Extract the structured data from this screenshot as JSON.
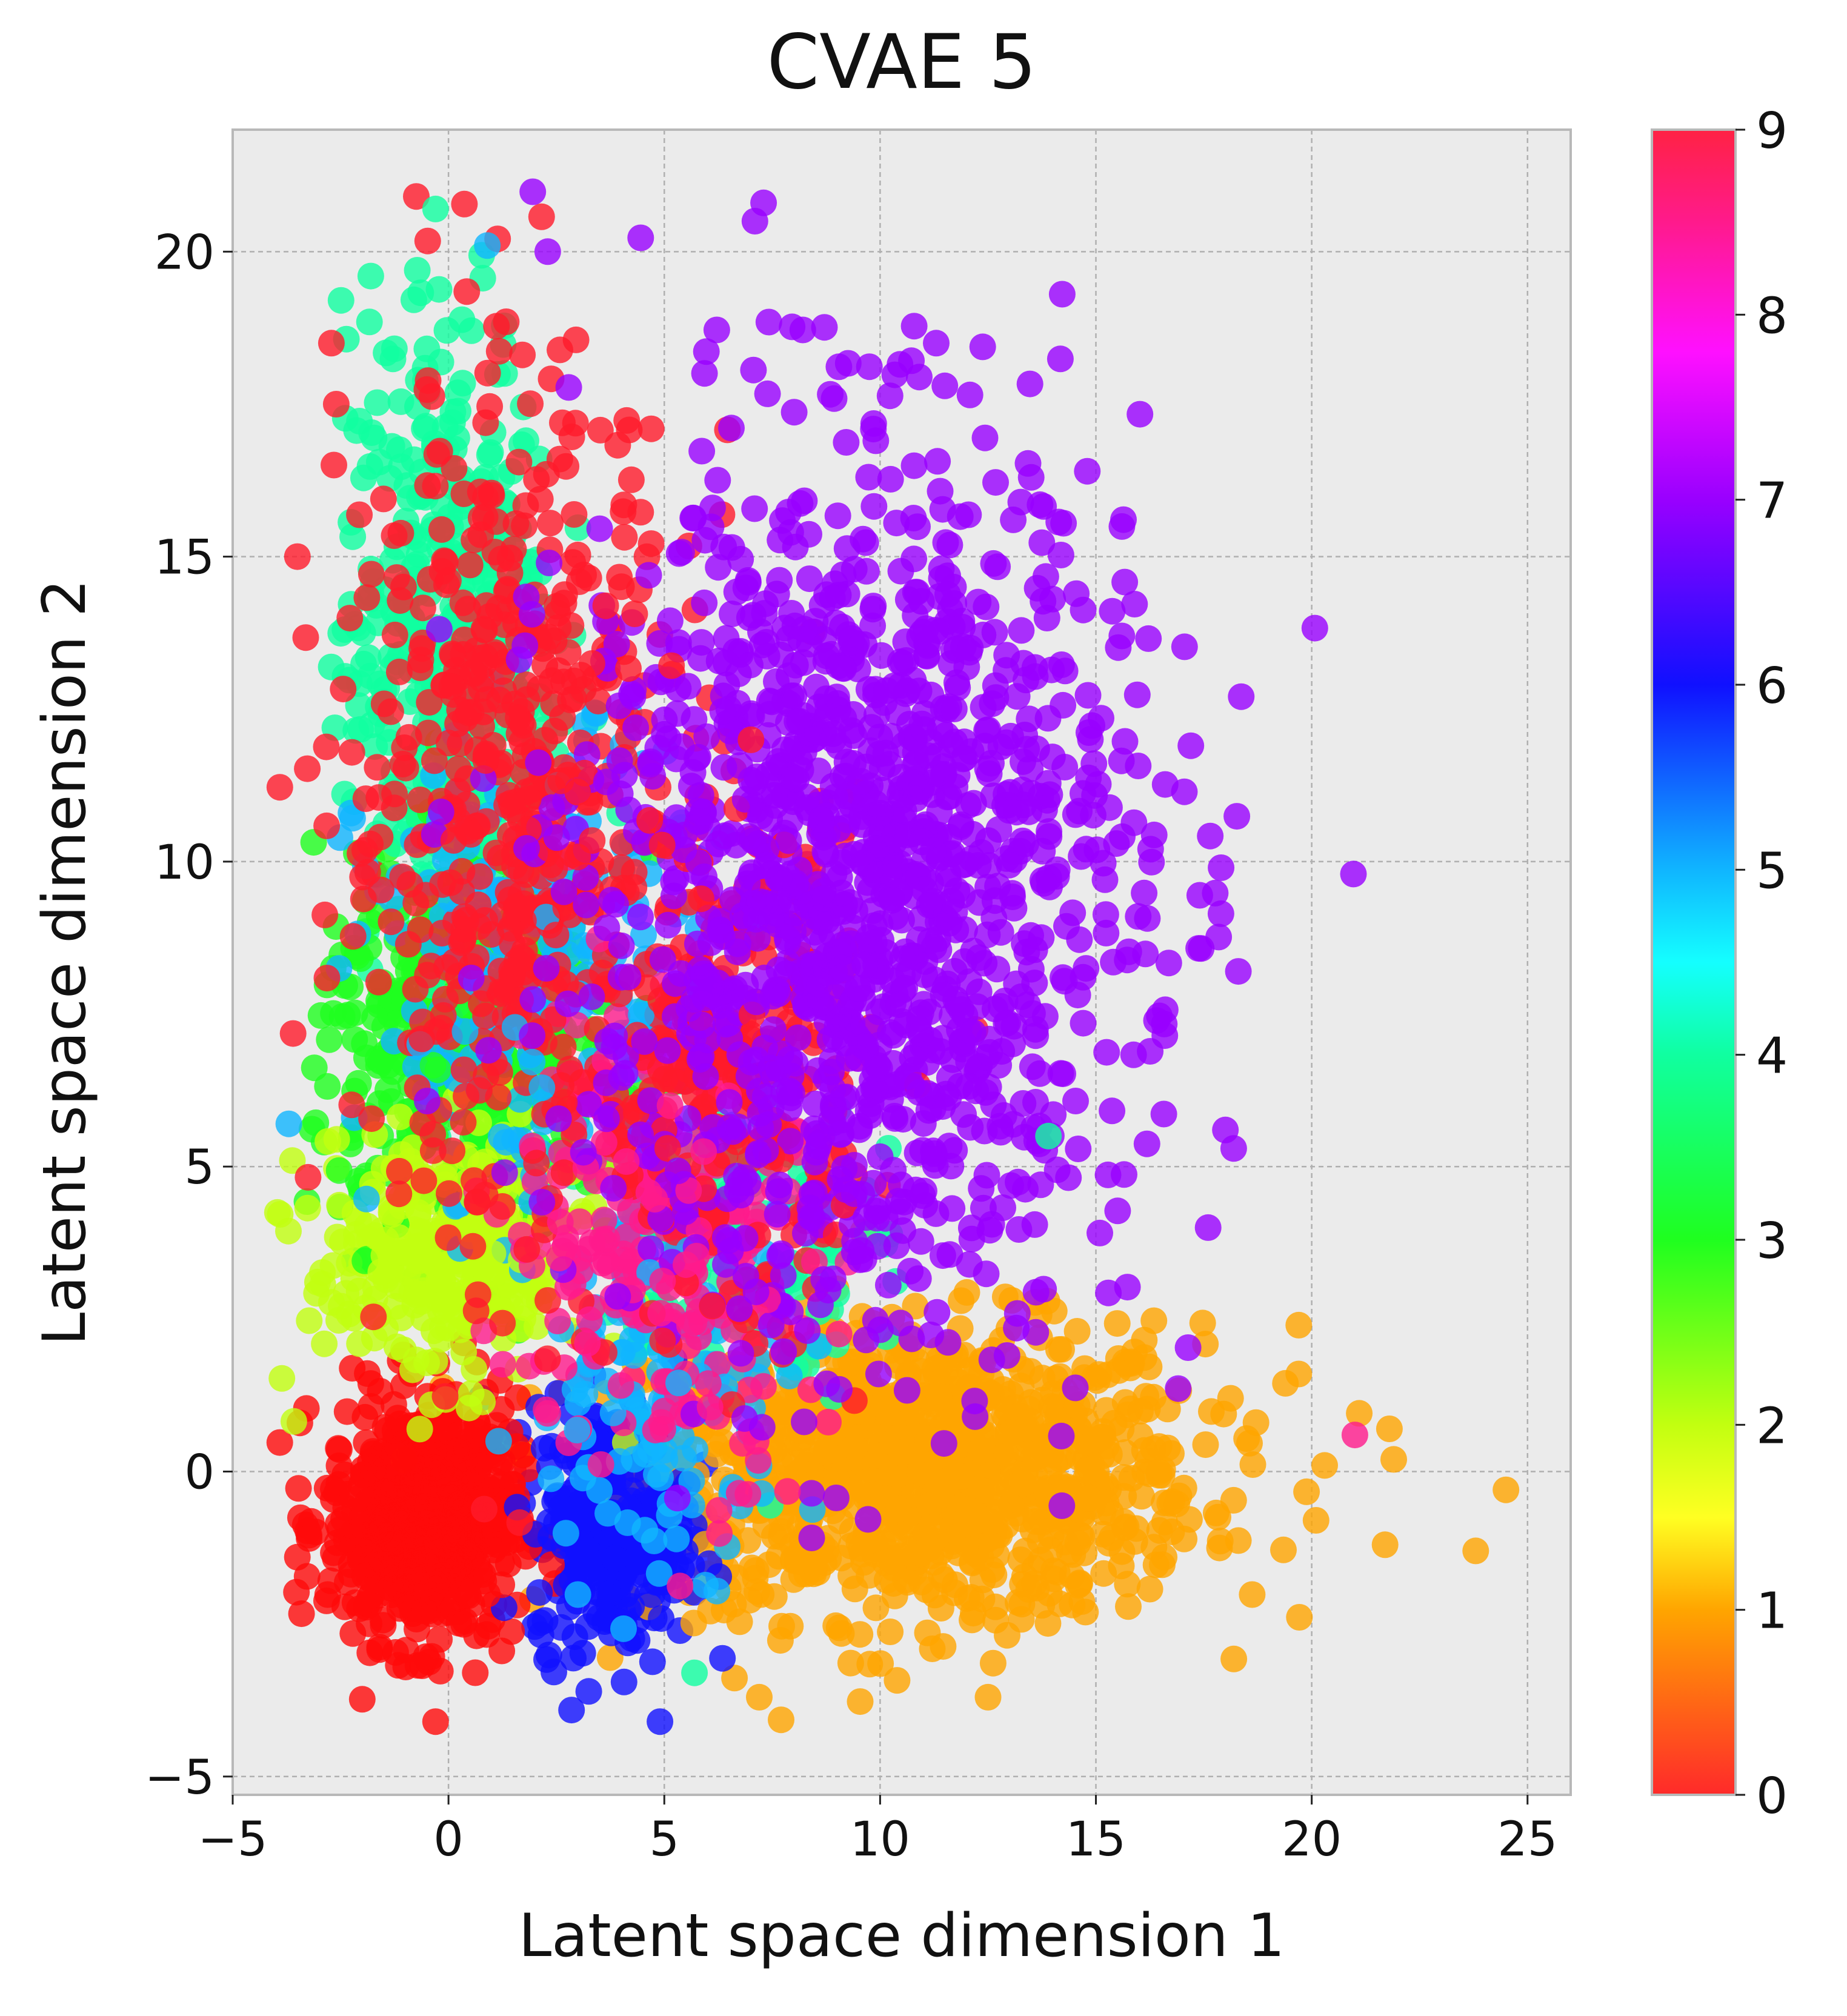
{
  "chart_data": {
    "type": "scatter",
    "title": "CVAE 5",
    "xlabel": "Latent space dimension 1",
    "ylabel": "Latent space dimension 2",
    "xlim": [
      -5,
      26
    ],
    "ylim": [
      -5.3,
      22
    ],
    "xticks": [
      -5,
      0,
      5,
      10,
      15,
      20,
      25
    ],
    "xtick_labels": [
      "−5",
      "0",
      "5",
      "10",
      "15",
      "20",
      "25"
    ],
    "yticks": [
      -5,
      0,
      5,
      10,
      15,
      20
    ],
    "ytick_labels": [
      "−5",
      "0",
      "5",
      "10",
      "15",
      "20"
    ],
    "grid": true,
    "grid_style": "dashed",
    "background_color": "#ebebeb",
    "colormap": "hsv (red → orange → yellow → green → cyan → blue → purple → magenta → red)",
    "colorbar": {
      "vmin": 0,
      "vmax": 9,
      "ticks": [
        0,
        1,
        2,
        3,
        4,
        5,
        6,
        7,
        8,
        9
      ],
      "tick_labels": [
        "0",
        "1",
        "2",
        "3",
        "4",
        "5",
        "6",
        "7",
        "8",
        "9"
      ],
      "stops": [
        {
          "value": 0,
          "color": "#ff2a2a"
        },
        {
          "value": 1,
          "color": "#ffa500"
        },
        {
          "value": 1.5,
          "color": "#ffff22"
        },
        {
          "value": 2,
          "color": "#c2ff10"
        },
        {
          "value": 3,
          "color": "#1fff1f"
        },
        {
          "value": 4,
          "color": "#10ffa0"
        },
        {
          "value": 4.5,
          "color": "#14ffff"
        },
        {
          "value": 5,
          "color": "#10b5ff"
        },
        {
          "value": 6,
          "color": "#1010ff"
        },
        {
          "value": 7,
          "color": "#9900ff"
        },
        {
          "value": 7.8,
          "color": "#ff10ff"
        },
        {
          "value": 8.5,
          "color": "#ff1a8c"
        },
        {
          "value": 9,
          "color": "#ff2244"
        }
      ]
    },
    "point_alpha": 0.8,
    "clusters": [
      {
        "label": 7,
        "color": "#9900ff",
        "center": [
          9.5,
          9.5
        ],
        "spread": [
          3.2,
          3.6
        ],
        "count": 1400
      },
      {
        "label": 1,
        "color": "#ffa500",
        "center": [
          11.0,
          0.0
        ],
        "spread": [
          3.2,
          1.2
        ],
        "count": 1100
      },
      {
        "label": 0,
        "color": "#ff0a0a",
        "center": [
          -0.6,
          -0.8
        ],
        "spread": [
          1.1,
          1.0
        ],
        "count": 650
      },
      {
        "label": 6,
        "color": "#1010ff",
        "center": [
          3.8,
          -0.9
        ],
        "spread": [
          0.9,
          1.0
        ],
        "count": 330
      },
      {
        "label": 9,
        "color": "#ff1a2a",
        "center": [
          1.5,
          11.0
        ],
        "spread": [
          2.0,
          3.5
        ],
        "count": 550
      },
      {
        "label": 9,
        "color": "#ff1a2a",
        "center": [
          6.5,
          6.5
        ],
        "spread": [
          1.6,
          2.2
        ],
        "count": 250
      },
      {
        "label": 4,
        "color": "#10ffa0",
        "center": [
          0.0,
          13.5
        ],
        "spread": [
          1.2,
          2.7
        ],
        "count": 450
      },
      {
        "label": 4,
        "color": "#10ffa0",
        "center": [
          6.5,
          4.0
        ],
        "spread": [
          1.5,
          1.5
        ],
        "count": 150
      },
      {
        "label": 3,
        "color": "#1fff1f",
        "center": [
          0.5,
          7.0
        ],
        "spread": [
          1.8,
          1.5
        ],
        "count": 420
      },
      {
        "label": 2,
        "color": "#c2ff10",
        "center": [
          0.0,
          3.5
        ],
        "spread": [
          1.6,
          1.0
        ],
        "count": 320
      },
      {
        "label": 5,
        "color": "#10b5ff",
        "center": [
          2.0,
          8.0
        ],
        "spread": [
          2.0,
          2.0
        ],
        "count": 220
      },
      {
        "label": 5,
        "color": "#10b5ff",
        "center": [
          5.0,
          1.5
        ],
        "spread": [
          1.5,
          1.5
        ],
        "count": 120
      },
      {
        "label": 8,
        "color": "#ff1a8c",
        "center": [
          5.0,
          4.0
        ],
        "spread": [
          1.8,
          2.0
        ],
        "count": 280
      }
    ],
    "outliers": [
      {
        "x": 9.9,
        "y": 16.9,
        "label": 7
      },
      {
        "x": 13.5,
        "y": 16.3,
        "label": 7
      },
      {
        "x": 14.8,
        "y": 16.4,
        "label": 7
      },
      {
        "x": 11.3,
        "y": 18.5,
        "label": 7
      },
      {
        "x": 11.5,
        "y": 17.8,
        "label": 7
      },
      {
        "x": 7.3,
        "y": 20.8,
        "label": 7
      },
      {
        "x": 7.1,
        "y": 20.5,
        "label": 7
      },
      {
        "x": 2.3,
        "y": 20.0,
        "label": 7
      },
      {
        "x": 15.6,
        "y": 13.7,
        "label": 7
      },
      {
        "x": 17.9,
        "y": 9.9,
        "label": 7
      },
      {
        "x": 18.3,
        "y": 8.2,
        "label": 7
      },
      {
        "x": 18.0,
        "y": 5.6,
        "label": 7
      },
      {
        "x": 17.6,
        "y": 4.0,
        "label": 7
      },
      {
        "x": 17.2,
        "y": 11.9,
        "label": 7
      },
      {
        "x": 21.0,
        "y": 0.6,
        "label": 8
      },
      {
        "x": 21.8,
        "y": 0.7,
        "label": 1
      },
      {
        "x": 21.9,
        "y": 0.2,
        "label": 1
      },
      {
        "x": 20.3,
        "y": 0.1,
        "label": 1
      },
      {
        "x": 24.5,
        "y": -0.3,
        "label": 1
      },
      {
        "x": 23.8,
        "y": -1.3,
        "label": 1
      },
      {
        "x": 21.7,
        "y": -1.2,
        "label": 1
      },
      {
        "x": 19.7,
        "y": 2.4,
        "label": 1
      },
      {
        "x": 19.7,
        "y": 1.6,
        "label": 1
      },
      {
        "x": 20.1,
        "y": -0.8,
        "label": 1
      },
      {
        "x": 12.5,
        "y": -3.7,
        "label": 1
      },
      {
        "x": 7.2,
        "y": -3.7,
        "label": 1
      },
      {
        "x": -0.3,
        "y": 20.7,
        "label": 4
      },
      {
        "x": 0.9,
        "y": 20.1,
        "label": 5
      },
      {
        "x": -1.8,
        "y": 19.6,
        "label": 4
      },
      {
        "x": -3.5,
        "y": 15.0,
        "label": 9
      },
      {
        "x": -2.6,
        "y": 17.5,
        "label": 9
      },
      {
        "x": -3.7,
        "y": 5.7,
        "label": 5
      },
      {
        "x": -0.3,
        "y": -4.1,
        "label": 0
      },
      {
        "x": 4.9,
        "y": -4.1,
        "label": 6
      },
      {
        "x": 5.7,
        "y": -3.3,
        "label": 4
      },
      {
        "x": 12.2,
        "y": 0.9,
        "label": 7
      },
      {
        "x": 13.9,
        "y": 5.5,
        "label": 4
      }
    ]
  }
}
